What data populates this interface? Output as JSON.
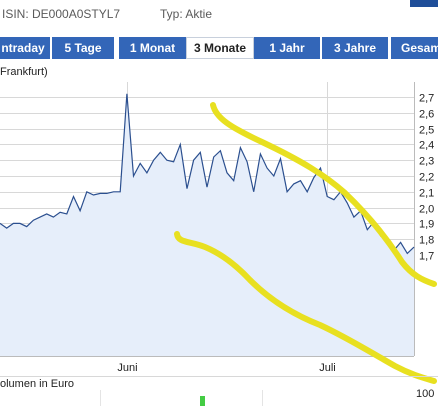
{
  "header": {
    "isin": "ISIN: DE000A0STYL7",
    "type": "Typ: Aktie"
  },
  "tabs": [
    {
      "label": "ntraday",
      "active": false
    },
    {
      "label": "5 Tage",
      "active": false
    },
    {
      "label": "1 Monat",
      "active": false
    },
    {
      "label": "3 Monate",
      "active": true
    },
    {
      "label": "1 Jahr",
      "active": false
    },
    {
      "label": "3 Jahre",
      "active": false
    },
    {
      "label": "Gesam",
      "active": false
    }
  ],
  "chart_meta": {
    "market_label": "Frankfurt)",
    "volume_label": "olumen in Euro",
    "volume_axis_max": "100"
  },
  "colors": {
    "tab_blue": "#3366b8",
    "line": "#2b4f8f",
    "fill": "#e6eefa",
    "annotation": "#e8e020",
    "volume_bar": "#44cc44",
    "grid": "#d8d8d8"
  },
  "chart_data": {
    "type": "area",
    "x_tick_labels": [
      "Juni",
      "Juli"
    ],
    "y_ticks": [
      "2,7",
      "2,6",
      "2,5",
      "2,4",
      "2,3",
      "2,2",
      "2,1",
      "2,0",
      "1,9",
      "1,8",
      "1,7"
    ],
    "ylim": [
      1.65,
      2.74
    ],
    "x_range": [
      0,
      62
    ],
    "grid": true,
    "values": [
      1.9,
      1.87,
      1.9,
      1.9,
      1.88,
      1.92,
      1.94,
      1.96,
      1.94,
      1.97,
      1.96,
      2.07,
      1.98,
      2.1,
      2.08,
      2.09,
      2.09,
      2.1,
      2.1,
      2.72,
      2.2,
      2.28,
      2.22,
      2.3,
      2.35,
      2.3,
      2.29,
      2.4,
      2.12,
      2.3,
      2.35,
      2.13,
      2.32,
      2.36,
      2.22,
      2.17,
      2.38,
      2.29,
      2.1,
      2.34,
      2.25,
      2.2,
      2.31,
      2.1,
      2.15,
      2.17,
      2.1,
      2.19,
      2.25,
      2.07,
      2.05,
      2.1,
      2.03,
      1.94,
      1.98,
      1.86,
      1.91,
      1.82,
      1.81,
      1.73,
      1.78,
      1.71,
      1.75
    ]
  }
}
